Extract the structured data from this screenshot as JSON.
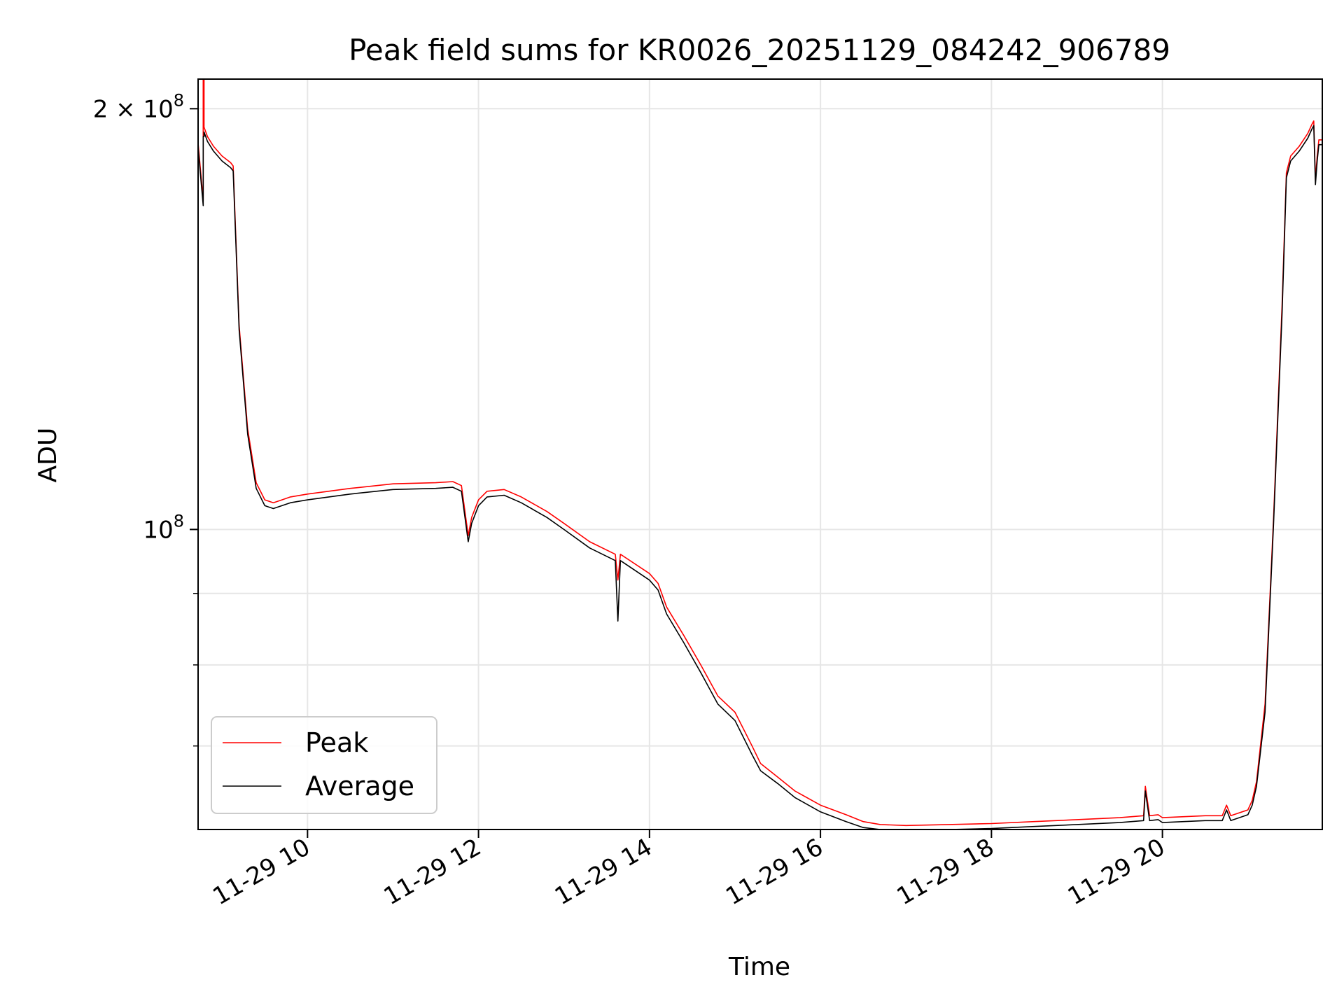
{
  "chart_data": {
    "type": "line",
    "title": "Peak field sums for KR0026_20251129_084242_906789",
    "xlabel": "Time",
    "ylabel": "ADU",
    "yscale": "log",
    "grid": true,
    "legend_position": "lower-left",
    "x_range_hours": [
      8.72,
      21.87
    ],
    "ylim": [
      61000000,
      210000000
    ],
    "x_ticks": [
      {
        "hour": 10,
        "label": "11-29 10"
      },
      {
        "hour": 12,
        "label": "11-29 12"
      },
      {
        "hour": 14,
        "label": "11-29 14"
      },
      {
        "hour": 16,
        "label": "11-29 16"
      },
      {
        "hour": 18,
        "label": "11-29 18"
      },
      {
        "hour": 20,
        "label": "11-29 20"
      }
    ],
    "y_major_ticks": [
      {
        "value": 100000000,
        "base": "10",
        "exp": "8",
        "coef": ""
      },
      {
        "value": 200000000,
        "base": "10",
        "exp": "8",
        "coef": "2 × "
      }
    ],
    "y_minor_ticks": [
      70000000,
      80000000,
      90000000
    ],
    "series": [
      {
        "name": "Peak",
        "color": "#ff0000",
        "x_hours": [
          8.72,
          8.78,
          8.78,
          8.79,
          8.79,
          8.83,
          8.9,
          9.0,
          9.1,
          9.13,
          9.2,
          9.3,
          9.4,
          9.5,
          9.6,
          9.7,
          9.8,
          10.0,
          10.5,
          11.0,
          11.5,
          11.7,
          11.8,
          11.88,
          11.92,
          12.0,
          12.1,
          12.3,
          12.5,
          12.8,
          13.0,
          13.3,
          13.6,
          13.63,
          13.66,
          14.0,
          14.1,
          14.2,
          14.4,
          14.6,
          14.8,
          15.0,
          15.2,
          15.3,
          15.5,
          15.7,
          16.0,
          16.3,
          16.5,
          16.7,
          17.0,
          17.5,
          18.0,
          18.5,
          19.0,
          19.5,
          19.78,
          19.8,
          19.85,
          19.95,
          20.0,
          20.5,
          20.7,
          20.75,
          20.8,
          21.0,
          21.05,
          21.1,
          21.2,
          21.3,
          21.4,
          21.45,
          21.5,
          21.6,
          21.7,
          21.75,
          21.77,
          21.79,
          21.81,
          21.83,
          21.87
        ],
        "values": [
          189000000,
          172000000,
          210000000,
          210000000,
          194000000,
          191000000,
          188000000,
          185000000,
          183000000,
          182000000,
          140000000,
          118000000,
          108000000,
          105000000,
          104500000,
          105000000,
          105500000,
          106000000,
          107000000,
          107800000,
          108000000,
          108200000,
          107500000,
          99000000,
          102000000,
          105000000,
          106500000,
          106800000,
          105500000,
          103000000,
          101000000,
          98000000,
          96000000,
          92000000,
          96000000,
          93000000,
          91500000,
          88000000,
          84000000,
          80000000,
          76000000,
          74000000,
          70000000,
          68000000,
          66500000,
          65000000,
          63500000,
          62500000,
          61800000,
          61500000,
          61400000,
          61500000,
          61600000,
          61800000,
          62000000,
          62200000,
          62400000,
          65500000,
          62400000,
          62500000,
          62200000,
          62400000,
          62400000,
          63500000,
          62400000,
          63000000,
          64000000,
          66000000,
          75000000,
          102000000,
          145000000,
          180000000,
          185000000,
          188000000,
          192000000,
          195000000,
          196000000,
          178000000,
          185000000,
          190000000,
          190000000
        ]
      },
      {
        "name": "Average",
        "color": "#000000",
        "x_hours": [
          8.72,
          8.78,
          8.78,
          8.79,
          8.79,
          8.83,
          8.9,
          9.0,
          9.1,
          9.13,
          9.2,
          9.3,
          9.4,
          9.5,
          9.6,
          9.7,
          9.8,
          10.0,
          10.5,
          11.0,
          11.5,
          11.7,
          11.8,
          11.88,
          11.92,
          12.0,
          12.1,
          12.3,
          12.5,
          12.8,
          13.0,
          13.3,
          13.6,
          13.63,
          13.66,
          14.0,
          14.1,
          14.2,
          14.4,
          14.6,
          14.8,
          15.0,
          15.2,
          15.3,
          15.5,
          15.7,
          16.0,
          16.3,
          16.5,
          16.7,
          17.0,
          17.5,
          18.0,
          18.5,
          19.0,
          19.5,
          19.78,
          19.8,
          19.85,
          19.95,
          20.0,
          20.5,
          20.7,
          20.75,
          20.8,
          21.0,
          21.05,
          21.1,
          21.2,
          21.3,
          21.4,
          21.45,
          21.5,
          21.6,
          21.7,
          21.75,
          21.77,
          21.79,
          21.81,
          21.83,
          21.87
        ],
        "values": [
          187500000,
          170500000,
          191000000,
          191000000,
          192500000,
          189500000,
          186500000,
          183500000,
          181500000,
          180500000,
          139000000,
          117000000,
          107000000,
          104000000,
          103500000,
          104000000,
          104500000,
          105000000,
          106000000,
          106800000,
          107000000,
          107200000,
          106500000,
          98000000,
          101000000,
          104000000,
          105500000,
          105800000,
          104500000,
          102000000,
          100000000,
          97000000,
          95000000,
          86000000,
          95000000,
          92000000,
          90500000,
          87000000,
          83000000,
          79000000,
          75000000,
          73000000,
          69000000,
          67200000,
          65800000,
          64300000,
          62800000,
          61800000,
          61200000,
          61000000,
          60900000,
          61000000,
          61100000,
          61300000,
          61500000,
          61700000,
          61900000,
          65000000,
          61900000,
          62000000,
          61700000,
          61900000,
          61900000,
          63000000,
          61900000,
          62500000,
          63500000,
          65500000,
          74000000,
          101000000,
          143000000,
          178500000,
          183500000,
          186500000,
          190500000,
          193500000,
          194500000,
          176500000,
          183500000,
          188500000,
          188500000
        ]
      }
    ]
  }
}
